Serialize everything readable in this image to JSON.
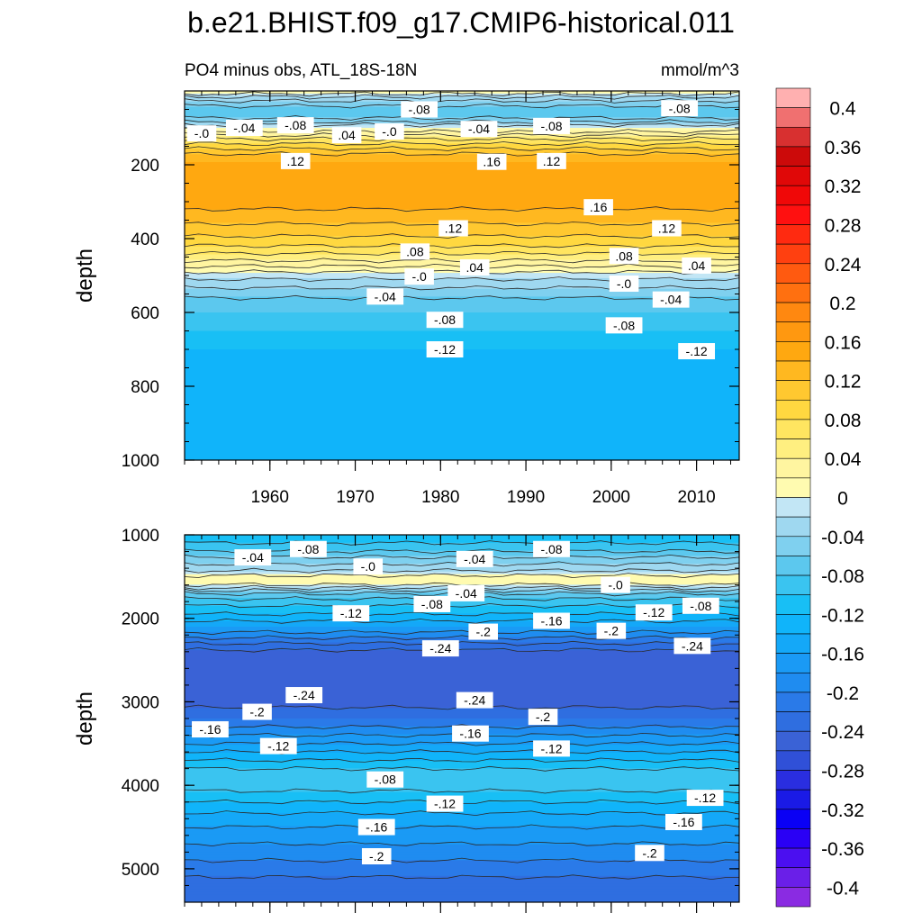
{
  "title": "b.e21.BHIST.f09_g17.CMIP6-historical.011",
  "subtitle_left": "PO4 minus obs, ATL_18S-18N",
  "units": "mmol/m^3",
  "colors": {
    "levels": [
      -0.42,
      -0.4,
      -0.38,
      -0.36,
      -0.34,
      -0.32,
      -0.3,
      -0.28,
      -0.26,
      -0.24,
      -0.22,
      -0.2,
      -0.18,
      -0.16,
      -0.14,
      -0.12,
      -0.1,
      -0.08,
      -0.06,
      -0.04,
      -0.02,
      0.0,
      0.02,
      0.04,
      0.06,
      0.08,
      0.1,
      0.12,
      0.14,
      0.16,
      0.18,
      0.2,
      0.22,
      0.24,
      0.26,
      0.28,
      0.3,
      0.32,
      0.34,
      0.36,
      0.38,
      0.4,
      0.42
    ],
    "palette": [
      "#8a2be2",
      "#6a1fe8",
      "#4b0ff0",
      "#2a00f5",
      "#0a00f5",
      "#1a1ae6",
      "#2a2ee0",
      "#3050d8",
      "#3a62d6",
      "#2f6ee0",
      "#2a7ae8",
      "#1f8cf0",
      "#1a9af5",
      "#14a8f8",
      "#10b4fa",
      "#18bff5",
      "#3ac4f0",
      "#5cc8ee",
      "#7fd0ef",
      "#9fd8f0",
      "#c2e6f5",
      "#fffbb0",
      "#fff5a0",
      "#ffef80",
      "#ffe560",
      "#ffd840",
      "#ffc830",
      "#ffb820",
      "#ffa810",
      "#ff9810",
      "#ff8810",
      "#ff7010",
      "#ff5a10",
      "#ff4010",
      "#ff2a10",
      "#ff1010",
      "#f00808",
      "#e00808",
      "#cc0a0a",
      "#d83030",
      "#f07070",
      "#ffb0b0"
    ]
  },
  "chart_data": [
    {
      "type": "contour",
      "panel": "upper",
      "xlabel": "",
      "ylabel": "depth",
      "xlim": [
        1950,
        2015
      ],
      "ylim": [
        1000,
        0
      ],
      "x_ticks": [
        1960,
        1970,
        1980,
        1990,
        2000,
        2010
      ],
      "x_tick_labels": [
        "1960",
        "1970",
        "1980",
        "1990",
        "2000",
        "2010"
      ],
      "y_ticks": [
        200,
        400,
        600,
        800,
        1000
      ],
      "y_tick_labels": [
        "200",
        "400",
        "600",
        "800",
        "1000"
      ],
      "profile_depths": [
        0,
        20,
        40,
        60,
        80,
        100,
        130,
        170,
        210,
        250,
        300,
        340,
        380,
        420,
        460,
        490,
        520,
        560,
        600,
        650,
        700,
        760,
        850,
        950,
        1000
      ],
      "profile_values": [
        0.02,
        -0.03,
        -0.06,
        -0.08,
        -0.05,
        0.0,
        0.06,
        0.12,
        0.155,
        0.16,
        0.15,
        0.13,
        0.11,
        0.08,
        0.04,
        0.0,
        -0.03,
        -0.06,
        -0.08,
        -0.1,
        -0.12,
        -0.13,
        -0.14,
        -0.14,
        -0.14
      ],
      "contour_labels": [
        {
          "text": "-.0",
          "x": 1952,
          "y": 115
        },
        {
          "text": "-.04",
          "x": 1957,
          "y": 100
        },
        {
          "text": "-.08",
          "x": 1963,
          "y": 93
        },
        {
          "text": "-.08",
          "x": 1977.5,
          "y": 50
        },
        {
          "text": ".04",
          "x": 1969,
          "y": 120
        },
        {
          "text": "-.0",
          "x": 1974,
          "y": 110
        },
        {
          "text": "-.04",
          "x": 1984.5,
          "y": 103
        },
        {
          "text": "-.08",
          "x": 1993,
          "y": 95
        },
        {
          "text": "-.08",
          "x": 2008,
          "y": 47
        },
        {
          "text": ".12",
          "x": 1963,
          "y": 190
        },
        {
          "text": ".16",
          "x": 1986,
          "y": 192
        },
        {
          "text": ".12",
          "x": 1993,
          "y": 190
        },
        {
          "text": ".16",
          "x": 1998.5,
          "y": 315
        },
        {
          "text": ".12",
          "x": 1981.5,
          "y": 372
        },
        {
          "text": ".12",
          "x": 2006.5,
          "y": 372
        },
        {
          "text": ".08",
          "x": 1977,
          "y": 435
        },
        {
          "text": ".08",
          "x": 2001.5,
          "y": 447
        },
        {
          "text": ".04",
          "x": 1984,
          "y": 478
        },
        {
          "text": ".04",
          "x": 2010,
          "y": 473
        },
        {
          "text": "-.0",
          "x": 1977.5,
          "y": 503
        },
        {
          "text": "-.0",
          "x": 2001.5,
          "y": 522
        },
        {
          "text": "-.04",
          "x": 1973.5,
          "y": 557
        },
        {
          "text": "-.04",
          "x": 2007,
          "y": 565
        },
        {
          "text": "-.08",
          "x": 1980.5,
          "y": 620
        },
        {
          "text": "-.08",
          "x": 2001.5,
          "y": 635
        },
        {
          "text": "-.12",
          "x": 1980.5,
          "y": 700
        },
        {
          "text": "-.12",
          "x": 2010,
          "y": 705
        }
      ]
    },
    {
      "type": "contour",
      "panel": "lower",
      "xlabel": "",
      "ylabel": "depth",
      "xlim": [
        1950,
        2015
      ],
      "ylim": [
        5400,
        1000
      ],
      "x_ticks": [
        1960,
        1970,
        1980,
        1990,
        2000,
        2010
      ],
      "y_ticks": [
        1000,
        2000,
        3000,
        4000,
        5000
      ],
      "y_tick_labels": [
        "1000",
        "2000",
        "3000",
        "4000",
        "5000"
      ],
      "profile_depths": [
        1000,
        1100,
        1200,
        1300,
        1400,
        1500,
        1600,
        1700,
        1800,
        1900,
        2000,
        2100,
        2200,
        2300,
        2400,
        2500,
        2700,
        3000,
        3200,
        3400,
        3600,
        3800,
        3900,
        4000,
        4200,
        4400,
        4600,
        4800,
        5000,
        5200,
        5400
      ],
      "profile_values": [
        -0.11,
        -0.1,
        -0.08,
        -0.05,
        -0.03,
        0.005,
        0.0,
        -0.06,
        -0.09,
        -0.11,
        -0.13,
        -0.16,
        -0.19,
        -0.22,
        -0.245,
        -0.255,
        -0.26,
        -0.25,
        -0.22,
        -0.18,
        -0.14,
        -0.1,
        -0.085,
        -0.09,
        -0.12,
        -0.15,
        -0.17,
        -0.19,
        -0.21,
        -0.23,
        -0.24
      ],
      "contour_labels": [
        {
          "text": "-.04",
          "x": 1958,
          "y": 1270
        },
        {
          "text": "-.08",
          "x": 1964.5,
          "y": 1170
        },
        {
          "text": "-.0",
          "x": 1971.5,
          "y": 1380
        },
        {
          "text": "-.04",
          "x": 1984,
          "y": 1290
        },
        {
          "text": "-.08",
          "x": 1993,
          "y": 1170
        },
        {
          "text": "-.04",
          "x": 1983,
          "y": 1700
        },
        {
          "text": "-.0",
          "x": 2000.5,
          "y": 1600
        },
        {
          "text": "-.08",
          "x": 1979,
          "y": 1830
        },
        {
          "text": "-.12",
          "x": 1969.5,
          "y": 1940
        },
        {
          "text": "-.12",
          "x": 2005,
          "y": 1930
        },
        {
          "text": "-.08",
          "x": 2010.5,
          "y": 1850
        },
        {
          "text": "-.2",
          "x": 1985,
          "y": 2160
        },
        {
          "text": "-.16",
          "x": 1993,
          "y": 2030
        },
        {
          "text": "-.2",
          "x": 2000,
          "y": 2150
        },
        {
          "text": "-.24",
          "x": 1980,
          "y": 2360
        },
        {
          "text": "-.24",
          "x": 2009.5,
          "y": 2330
        },
        {
          "text": "-.24",
          "x": 1964,
          "y": 2920
        },
        {
          "text": "-.24",
          "x": 1984,
          "y": 2980
        },
        {
          "text": "-.2",
          "x": 1958.5,
          "y": 3120
        },
        {
          "text": "-.2",
          "x": 1992,
          "y": 3180
        },
        {
          "text": "-.16",
          "x": 1953,
          "y": 3330
        },
        {
          "text": "-.16",
          "x": 1983.5,
          "y": 3380
        },
        {
          "text": "-.12",
          "x": 1961,
          "y": 3530
        },
        {
          "text": "-.12",
          "x": 1993,
          "y": 3560
        },
        {
          "text": "-.08",
          "x": 1973.5,
          "y": 3930
        },
        {
          "text": "-.12",
          "x": 1980.5,
          "y": 4220
        },
        {
          "text": "-.12",
          "x": 2011,
          "y": 4150
        },
        {
          "text": "-.16",
          "x": 1972.5,
          "y": 4500
        },
        {
          "text": "-.16",
          "x": 2008.5,
          "y": 4440
        },
        {
          "text": "-.2",
          "x": 1972.5,
          "y": 4850
        },
        {
          "text": "-.2",
          "x": 2004.5,
          "y": 4810
        }
      ]
    }
  ],
  "colorbar": {
    "labels": [
      "0.4",
      "0.36",
      "0.32",
      "0.28",
      "0.24",
      "0.2",
      "0.16",
      "0.12",
      "0.08",
      "0.04",
      "0",
      "-0.04",
      "-0.08",
      "-0.12",
      "-0.16",
      "-0.2",
      "-0.24",
      "-0.28",
      "-0.32",
      "-0.36",
      "-0.4"
    ],
    "label_values": [
      0.4,
      0.36,
      0.32,
      0.28,
      0.24,
      0.2,
      0.16,
      0.12,
      0.08,
      0.04,
      0.0,
      -0.04,
      -0.08,
      -0.12,
      -0.16,
      -0.2,
      -0.24,
      -0.28,
      -0.32,
      -0.36,
      -0.4
    ]
  }
}
